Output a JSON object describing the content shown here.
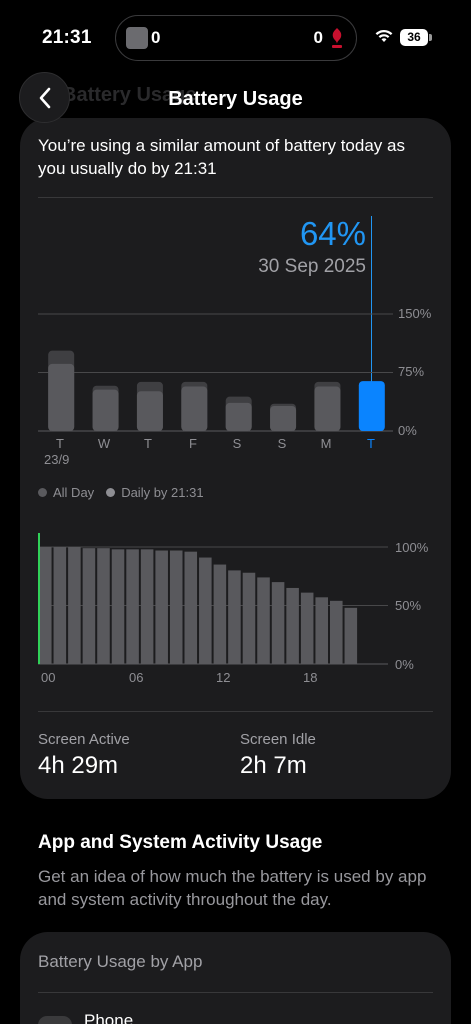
{
  "status_bar": {
    "time": "21:31",
    "live_activity": {
      "left_score": "0",
      "right_score": "0",
      "crest_icon": "liverpool-crest-icon"
    },
    "battery_level": "36"
  },
  "nav": {
    "title": "Battery Usage",
    "ghost_title": "Battery Usage",
    "back_icon": "chevron-left-icon"
  },
  "summary": "You’re using a similar amount of battery today as you usually do by 21:31",
  "selection": {
    "value": "64%",
    "date": "30 Sep 2025"
  },
  "chart_data": [
    {
      "type": "bar",
      "categories": [
        "T",
        "W",
        "T",
        "F",
        "S",
        "S",
        "M",
        "T"
      ],
      "sub_labels": [
        "23/9",
        "",
        "",
        "",
        "",
        "",
        "",
        ""
      ],
      "series": [
        {
          "name": "All Day",
          "values": [
            103,
            58,
            63,
            63,
            44,
            35,
            63,
            64
          ]
        },
        {
          "name": "Daily by 21:31",
          "values": [
            86,
            53,
            51,
            57,
            36,
            32,
            57,
            64
          ]
        }
      ],
      "highlight_index": 7,
      "highlight_color": "#0a84ff",
      "yticks": [
        "150%",
        "75%",
        "0%"
      ],
      "ylim": [
        0,
        150
      ],
      "grid": true,
      "legend": "bottom-left"
    },
    {
      "type": "bar",
      "x": [
        0,
        1,
        2,
        3,
        4,
        5,
        6,
        7,
        8,
        9,
        10,
        11,
        12,
        13,
        14,
        15,
        16,
        17,
        18,
        19,
        20,
        21
      ],
      "values": [
        100,
        100,
        100,
        99,
        99,
        98,
        98,
        98,
        97,
        97,
        96,
        91,
        85,
        80,
        78,
        74,
        70,
        65,
        61,
        57,
        54,
        48
      ],
      "xticks": [
        "00",
        "06",
        "12",
        "18"
      ],
      "yticks": [
        "100%",
        "50%",
        "0%"
      ],
      "ylim": [
        0,
        100
      ],
      "grid": true
    }
  ],
  "legend": {
    "all_day": "All Day",
    "daily_by": "Daily by 21:31"
  },
  "stats": {
    "screen_active": {
      "label": "Screen Active",
      "value": "4h 29m"
    },
    "screen_idle": {
      "label": "Screen Idle",
      "value": "2h 7m"
    }
  },
  "section": {
    "title": "App and System Activity Usage",
    "description": "Get an idea of how much the battery is used by app and system activity throughout the day."
  },
  "by_app": {
    "title": "Battery Usage by App",
    "first_app": "Phone"
  },
  "colors": {
    "accent": "#0a84ff",
    "bar": "#59595d",
    "bar_back": "#3f3f42",
    "green": "#30d158"
  }
}
